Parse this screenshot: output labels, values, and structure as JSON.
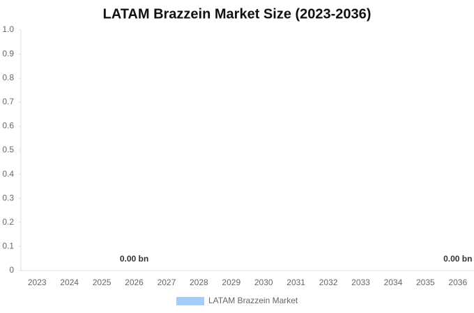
{
  "chart_data": {
    "type": "bar",
    "title": "LATAM Brazzein Market Size (2023-2036)",
    "categories": [
      "2023",
      "2024",
      "2025",
      "2026",
      "2027",
      "2028",
      "2029",
      "2030",
      "2031",
      "2032",
      "2033",
      "2034",
      "2035",
      "2036"
    ],
    "series": [
      {
        "name": "LATAM Brazzein Market",
        "color": "#a3cdf7",
        "values": [
          0,
          0,
          0,
          0,
          0,
          0,
          0,
          0,
          0,
          0,
          0,
          0,
          0,
          0
        ],
        "value_labels": [
          null,
          null,
          null,
          "0.00 bn",
          null,
          null,
          null,
          null,
          null,
          null,
          null,
          null,
          null,
          "0.00 bn"
        ]
      }
    ],
    "ylim": [
      0,
      1
    ],
    "yticks": [
      0,
      0.1,
      0.2,
      0.3,
      0.4,
      0.5,
      0.6,
      0.7,
      0.8,
      0.9,
      {
        "value": 1,
        "label": "1.0"
      }
    ],
    "grid": false,
    "legend": "bottom"
  }
}
